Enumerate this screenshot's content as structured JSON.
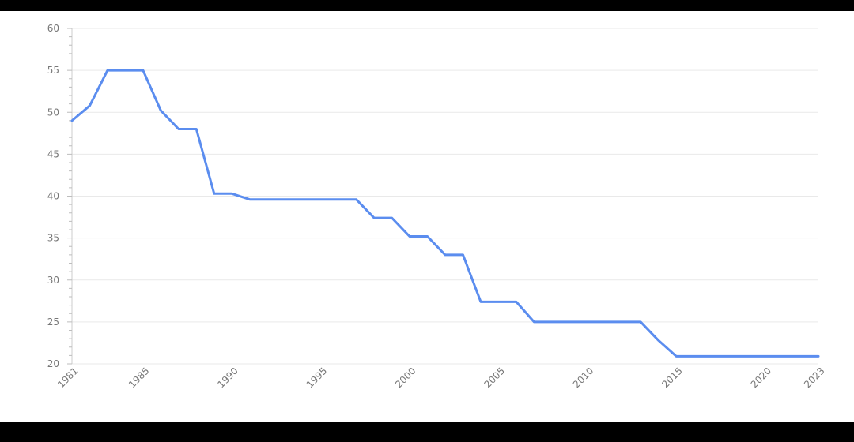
{
  "chart_data": {
    "type": "line",
    "title": "",
    "xlabel": "",
    "ylabel": "",
    "xlim": [
      1981,
      2023
    ],
    "ylim": [
      20,
      60
    ],
    "y_ticks": [
      20,
      25,
      30,
      35,
      40,
      45,
      50,
      55,
      60
    ],
    "x_ticks": [
      1981,
      1985,
      1990,
      1995,
      2000,
      2005,
      2010,
      2015,
      2020,
      2023
    ],
    "grid": true,
    "legend": "none",
    "line_color": "#5b8def",
    "series": [
      {
        "name": "",
        "points": [
          [
            1981,
            49.0
          ],
          [
            1982,
            50.8
          ],
          [
            1983,
            55.0
          ],
          [
            1984,
            55.0
          ],
          [
            1985,
            55.0
          ],
          [
            1986,
            50.2
          ],
          [
            1987,
            48.0
          ],
          [
            1988,
            48.0
          ],
          [
            1989,
            40.3
          ],
          [
            1990,
            40.3
          ],
          [
            1991,
            39.6
          ],
          [
            1992,
            39.6
          ],
          [
            1993,
            39.6
          ],
          [
            1994,
            39.6
          ],
          [
            1995,
            39.6
          ],
          [
            1996,
            39.6
          ],
          [
            1997,
            39.6
          ],
          [
            1998,
            37.4
          ],
          [
            1999,
            37.4
          ],
          [
            2000,
            35.2
          ],
          [
            2001,
            35.2
          ],
          [
            2002,
            33.0
          ],
          [
            2003,
            33.0
          ],
          [
            2004,
            27.4
          ],
          [
            2005,
            27.4
          ],
          [
            2006,
            27.4
          ],
          [
            2007,
            25.0
          ],
          [
            2008,
            25.0
          ],
          [
            2009,
            25.0
          ],
          [
            2010,
            25.0
          ],
          [
            2011,
            25.0
          ],
          [
            2012,
            25.0
          ],
          [
            2013,
            25.0
          ],
          [
            2014,
            22.8
          ],
          [
            2015,
            20.9
          ],
          [
            2016,
            20.9
          ],
          [
            2017,
            20.9
          ],
          [
            2018,
            20.9
          ],
          [
            2019,
            20.9
          ],
          [
            2020,
            20.9
          ],
          [
            2021,
            20.9
          ],
          [
            2022,
            20.9
          ],
          [
            2023,
            20.9
          ]
        ]
      }
    ]
  }
}
